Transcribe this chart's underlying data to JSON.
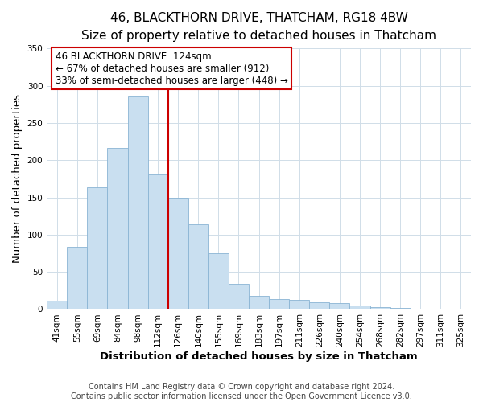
{
  "title": "46, BLACKTHORN DRIVE, THATCHAM, RG18 4BW",
  "subtitle": "Size of property relative to detached houses in Thatcham",
  "xlabel": "Distribution of detached houses by size in Thatcham",
  "ylabel": "Number of detached properties",
  "bar_labels": [
    "41sqm",
    "55sqm",
    "69sqm",
    "84sqm",
    "98sqm",
    "112sqm",
    "126sqm",
    "140sqm",
    "155sqm",
    "169sqm",
    "183sqm",
    "197sqm",
    "211sqm",
    "226sqm",
    "240sqm",
    "254sqm",
    "268sqm",
    "282sqm",
    "297sqm",
    "311sqm",
    "325sqm"
  ],
  "bar_values": [
    11,
    84,
    163,
    216,
    286,
    181,
    150,
    114,
    75,
    34,
    18,
    13,
    12,
    9,
    8,
    5,
    3,
    2,
    1,
    1,
    1
  ],
  "bar_color": "#c9dff0",
  "bar_edge_color": "#8ab4d4",
  "vline_color": "#cc0000",
  "annotation_title": "46 BLACKTHORN DRIVE: 124sqm",
  "annotation_line1": "← 67% of detached houses are smaller (912)",
  "annotation_line2": "33% of semi-detached houses are larger (448) →",
  "annotation_box_color": "#ffffff",
  "annotation_box_edge": "#cc0000",
  "ylim": [
    0,
    350
  ],
  "footer1": "Contains HM Land Registry data © Crown copyright and database right 2024.",
  "footer2": "Contains public sector information licensed under the Open Government Licence v3.0.",
  "title_fontsize": 11,
  "subtitle_fontsize": 10,
  "axis_label_fontsize": 9.5,
  "tick_fontsize": 7.5,
  "annotation_fontsize": 8.5,
  "footer_fontsize": 7
}
